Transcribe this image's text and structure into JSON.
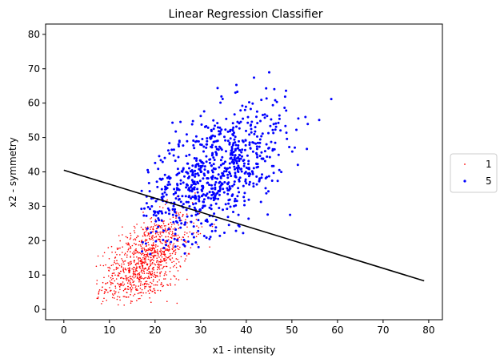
{
  "chart_data": {
    "type": "scatter",
    "title": "Linear Regression Classifier",
    "xlabel": "x1 - intensity",
    "ylabel": "x2 - symmetry",
    "xlim": [
      -4,
      83
    ],
    "ylim": [
      -3,
      83
    ],
    "xticks": [
      0,
      10,
      20,
      30,
      40,
      50,
      60,
      70,
      80
    ],
    "yticks": [
      0,
      10,
      20,
      30,
      40,
      50,
      60,
      70,
      80
    ],
    "grid": false,
    "legend_position": "right-center",
    "series": [
      {
        "name": "1",
        "color": "#ff0000",
        "marker": "small-dot",
        "count": 1000,
        "cluster": {
          "x_mean": 18,
          "x_std": 5,
          "y_mean": 14,
          "y_std": 7,
          "x_range": [
            7,
            42
          ],
          "y_range": [
            1,
            35
          ]
        }
      },
      {
        "name": "5",
        "color": "#0000ff",
        "marker": "dot",
        "count": 800,
        "cluster": {
          "x_mean": 33,
          "x_std": 8,
          "y_mean": 40,
          "y_std": 10,
          "x_range": [
            17,
            65
          ],
          "y_range": [
            15,
            79
          ]
        }
      }
    ],
    "line": {
      "name": "decision-boundary",
      "color": "#000000",
      "x": [
        0,
        79
      ],
      "y": [
        40.5,
        8.3
      ]
    }
  }
}
